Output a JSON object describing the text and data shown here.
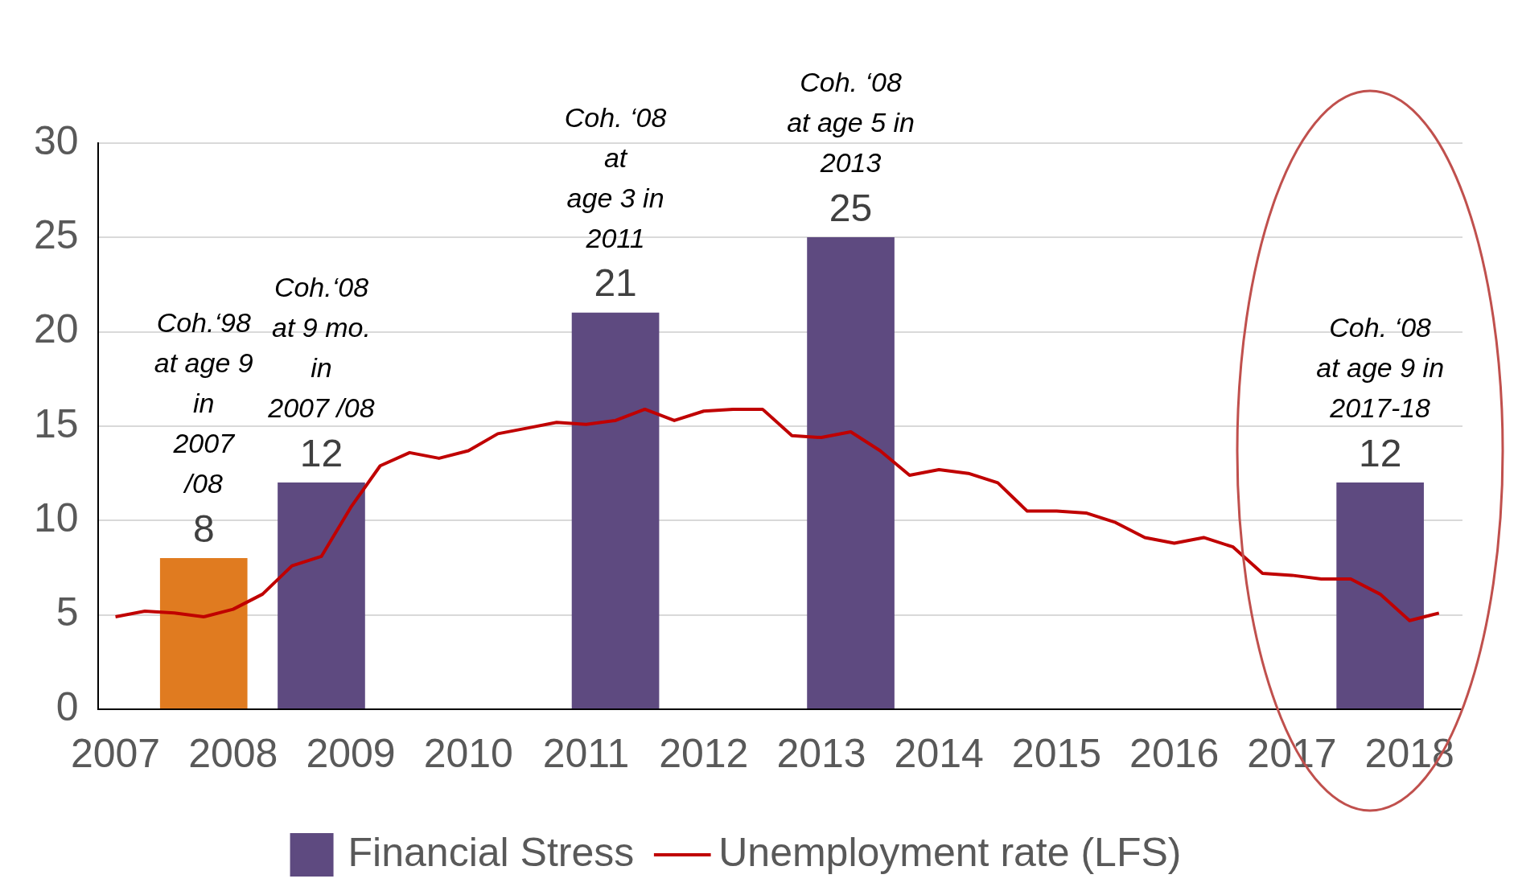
{
  "chart_data": {
    "type": "bar",
    "xlim": [
      2006.85,
      2018.45
    ],
    "xticks": [
      2007,
      2008,
      2009,
      2010,
      2011,
      2012,
      2013,
      2014,
      2015,
      2016,
      2017,
      2018
    ],
    "ylim": [
      0,
      30
    ],
    "yticks": [
      0,
      5,
      10,
      15,
      20,
      25,
      30
    ],
    "grid": "y",
    "legend": "bottom",
    "annotations": [
      "Coh.‘98\nat age 9\nin\n2007\n/08",
      "Coh.‘08\nat 9 mo.\nin\n2007 /08",
      "Coh. ‘08\nat\nage 3 in\n2011",
      "Coh. ‘08\nat age 5 in\n2013",
      "Coh. ‘08\nat age 9 in\n2017-18"
    ],
    "series": [
      {
        "name": "Financial Stress",
        "color": "#5e4a80",
        "colors": [
          "#e07b20",
          "#5e4a80",
          "#5e4a80",
          "#5e4a80",
          "#5e4a80"
        ],
        "x": [
          2007.75,
          2008.75,
          2011.25,
          2013.25,
          2017.75
        ],
        "values": [
          8,
          12,
          21,
          25,
          12
        ],
        "value_labels": [
          "8",
          "12",
          "21",
          "25",
          "12"
        ]
      },
      {
        "name": "Unemployment rate (LFS)",
        "type": "line",
        "color": "#c00000",
        "marker": "none",
        "x": [
          2007,
          2007.25,
          2007.5,
          2007.75,
          2008,
          2008.25,
          2008.5,
          2008.75,
          2009,
          2009.25,
          2009.5,
          2009.75,
          2010,
          2010.25,
          2010.5,
          2010.75,
          2011,
          2011.25,
          2011.5,
          2011.75,
          2012,
          2012.25,
          2012.5,
          2012.75,
          2013,
          2013.25,
          2013.5,
          2013.75,
          2014,
          2014.25,
          2014.5,
          2014.75,
          2015,
          2015.25,
          2015.5,
          2015.75,
          2016,
          2016.25,
          2016.5,
          2016.75,
          2017,
          2017.25,
          2017.5,
          2017.75,
          2018,
          2018.25
        ],
        "values": [
          4.9,
          5.2,
          5.1,
          4.9,
          5.3,
          6.1,
          7.6,
          8.1,
          10.7,
          12.9,
          13.6,
          13.3,
          13.7,
          14.6,
          14.9,
          15.2,
          15.1,
          15.3,
          15.9,
          15.3,
          15.8,
          15.9,
          15.9,
          14.5,
          14.4,
          14.7,
          13.7,
          12.4,
          12.7,
          12.5,
          12.0,
          10.5,
          10.5,
          10.4,
          9.9,
          9.1,
          8.8,
          9.1,
          8.6,
          7.2,
          7.1,
          6.9,
          6.9,
          6.1,
          4.7,
          5.1
        ]
      }
    ]
  }
}
